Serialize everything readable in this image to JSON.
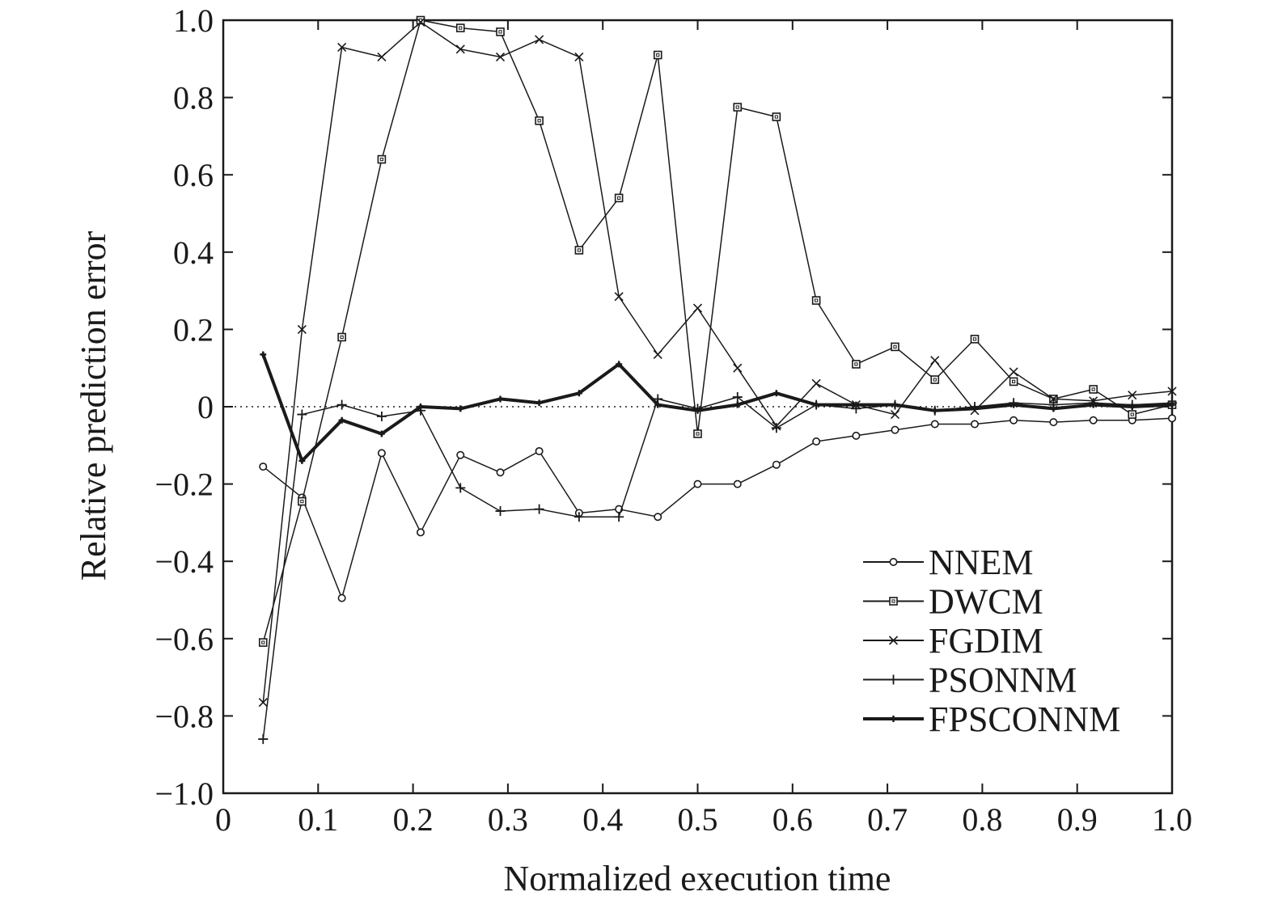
{
  "chart_data": {
    "type": "line",
    "title": "",
    "xlabel": "Normalized execution time",
    "ylabel": "Relative prediction error",
    "xlim": [
      0,
      1.0
    ],
    "ylim": [
      -1.0,
      1.0
    ],
    "x_ticks": [
      0,
      0.1,
      0.2,
      0.3,
      0.4,
      0.5,
      0.6,
      0.7,
      0.8,
      0.9,
      1.0
    ],
    "x_tick_labels": [
      "0",
      "0.1",
      "0.2",
      "0.3",
      "0.4",
      "0.5",
      "0.6",
      "0.7",
      "0.8",
      "0.9",
      "1.0"
    ],
    "y_ticks": [
      -1.0,
      -0.8,
      -0.6,
      -0.4,
      -0.2,
      0,
      0.2,
      0.4,
      0.6,
      0.8,
      1.0
    ],
    "y_tick_labels": [
      "−1.0",
      "−0.8",
      "−0.6",
      "−0.4",
      "−0.2",
      "0",
      "0.2",
      "0.4",
      "0.6",
      "0.8",
      "1.0"
    ],
    "zero_reference_line": "dotted",
    "grid": false,
    "legend_position": "bottom-right",
    "x": [
      0.042,
      0.083,
      0.125,
      0.167,
      0.208,
      0.25,
      0.292,
      0.333,
      0.375,
      0.417,
      0.458,
      0.5,
      0.542,
      0.583,
      0.625,
      0.667,
      0.708,
      0.75,
      0.792,
      0.833,
      0.875,
      0.917,
      0.958,
      1.0
    ],
    "series": [
      {
        "name": "NNEM",
        "marker": "circle",
        "line_weight": "thin",
        "values": [
          -0.155,
          -0.235,
          -0.495,
          -0.12,
          -0.325,
          -0.125,
          -0.17,
          -0.115,
          -0.275,
          -0.265,
          -0.285,
          -0.2,
          -0.2,
          -0.15,
          -0.09,
          -0.075,
          -0.06,
          -0.045,
          -0.045,
          -0.035,
          -0.04,
          -0.035,
          -0.035,
          -0.03
        ]
      },
      {
        "name": "DWCM",
        "marker": "square",
        "line_weight": "thin",
        "values": [
          -0.61,
          -0.245,
          0.18,
          0.64,
          1.0,
          0.98,
          0.97,
          0.74,
          0.405,
          0.54,
          0.91,
          -0.07,
          0.775,
          0.75,
          0.275,
          0.11,
          0.155,
          0.07,
          0.175,
          0.065,
          0.02,
          0.045,
          -0.02,
          0.005
        ]
      },
      {
        "name": "FGDIM",
        "marker": "x",
        "line_weight": "thin",
        "values": [
          -0.765,
          0.2,
          0.93,
          0.905,
          0.995,
          0.925,
          0.905,
          0.95,
          0.905,
          0.285,
          0.135,
          0.255,
          0.1,
          -0.05,
          0.06,
          0.005,
          -0.02,
          0.12,
          -0.01,
          0.09,
          0.02,
          0.015,
          0.03,
          0.04
        ]
      },
      {
        "name": "PSONNM",
        "marker": "plus",
        "line_weight": "thin",
        "values": [
          -0.86,
          -0.02,
          0.005,
          -0.025,
          -0.01,
          -0.21,
          -0.27,
          -0.265,
          -0.285,
          -0.285,
          0.02,
          -0.005,
          0.025,
          -0.055,
          0.005,
          -0.005,
          0.005,
          -0.01,
          0.0,
          0.01,
          0.005,
          0.01,
          0.005,
          0.01
        ]
      },
      {
        "name": "FPSCONNM",
        "marker": "dot",
        "line_weight": "thick",
        "values": [
          0.135,
          -0.14,
          -0.035,
          -0.07,
          0.0,
          -0.005,
          0.02,
          0.01,
          0.035,
          0.11,
          0.005,
          -0.01,
          0.005,
          0.035,
          0.005,
          0.005,
          0.005,
          -0.01,
          -0.005,
          0.005,
          -0.005,
          0.005,
          0.0,
          0.005
        ]
      }
    ]
  }
}
